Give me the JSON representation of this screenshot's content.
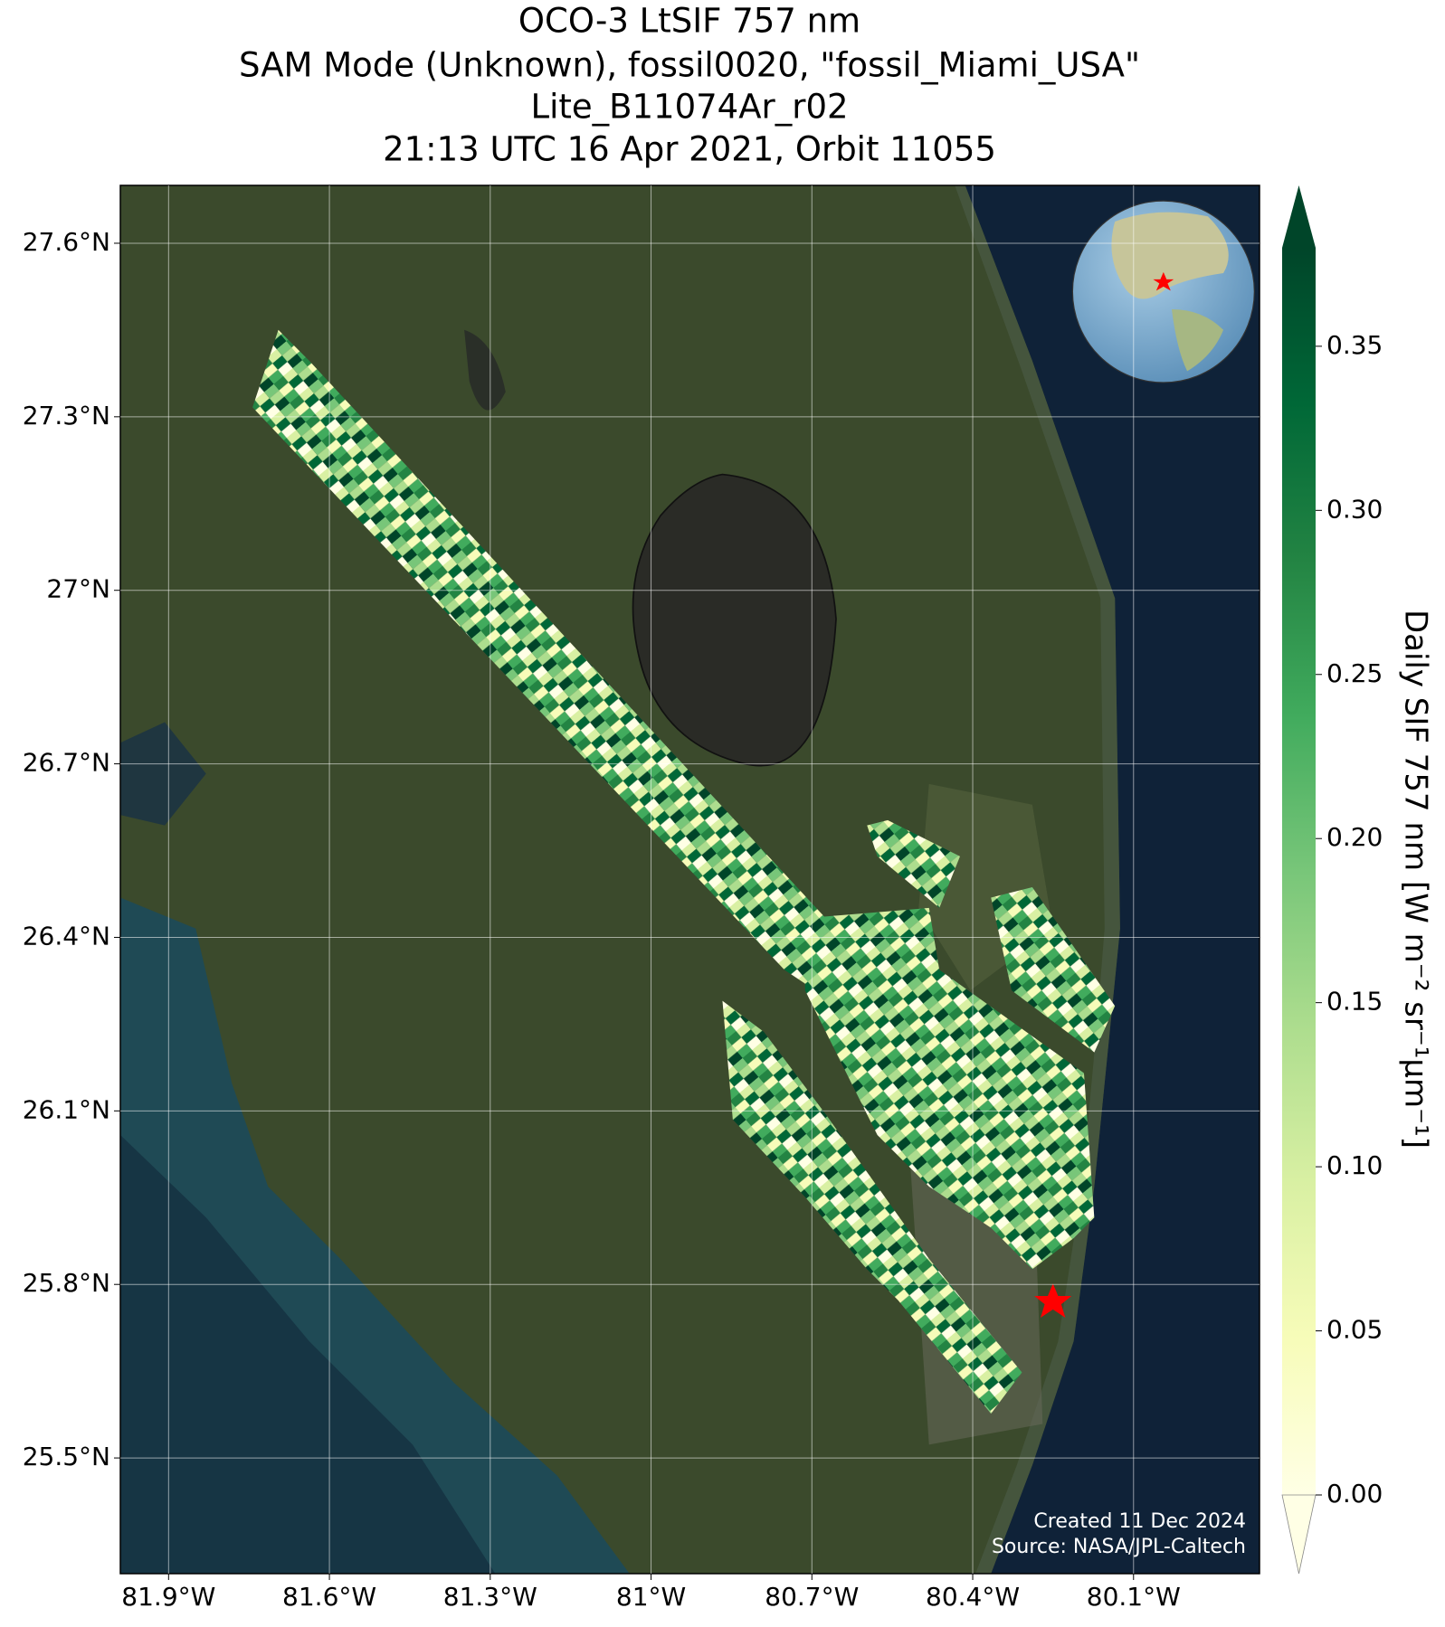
{
  "chart_data": {
    "type": "map",
    "title": [
      "OCO-3 LtSIF 757 nm",
      "SAM Mode (Unknown), fossil0020, \"fossil_Miami_USA\"",
      "Lite_B11074Ar_r02",
      "21:13 UTC 16 Apr 2021, Orbit 11055"
    ],
    "xlim": [
      -81.99,
      -79.865
    ],
    "ylim": [
      25.3,
      27.7
    ],
    "xticks": [
      {
        "value": -81.9,
        "label": "81.9°W"
      },
      {
        "value": -81.6,
        "label": "81.6°W"
      },
      {
        "value": -81.3,
        "label": "81.3°W"
      },
      {
        "value": -81,
        "label": "81°W"
      },
      {
        "value": -80.7,
        "label": "80.7°W"
      },
      {
        "value": -80.4,
        "label": "80.4°W"
      },
      {
        "value": -80.1,
        "label": "80.1°W"
      }
    ],
    "yticks": [
      {
        "value": 27.6,
        "label": "27.6°N"
      },
      {
        "value": 27.3,
        "label": "27.3°N"
      },
      {
        "value": 27,
        "label": "27°N"
      },
      {
        "value": 26.7,
        "label": "26.7°N"
      },
      {
        "value": 26.4,
        "label": "26.4°N"
      },
      {
        "value": 26.1,
        "label": "26.1°N"
      },
      {
        "value": 25.8,
        "label": "25.8°N"
      },
      {
        "value": 25.5,
        "label": "25.5°N"
      }
    ],
    "grid": true,
    "colorbar": {
      "label": "Daily SIF 757 nm [W m⁻² sr⁻¹μm⁻¹]",
      "lim": [
        0,
        0.38
      ],
      "ticks": [
        {
          "value": 0,
          "label": "0.00"
        },
        0.05,
        {
          "value": 0.1,
          "label": "0.10"
        },
        0.15,
        {
          "value": 0.2,
          "label": "0.20"
        },
        0.25,
        {
          "value": 0.3,
          "label": "0.30"
        },
        0.35
      ]
    },
    "annotations": [
      "Created 11 Dec 2024",
      "Source: NASA/JPL-Caltech"
    ]
  }
}
